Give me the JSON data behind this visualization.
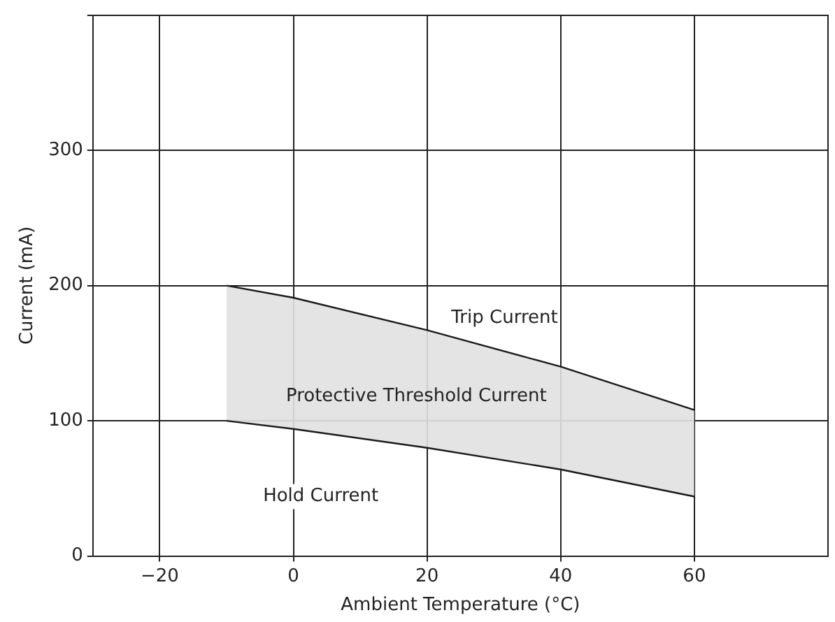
{
  "chart_data": {
    "type": "line",
    "xlabel": "Ambient Temperature (°C)",
    "ylabel": "Current (mA)",
    "x": [
      -10,
      0,
      20,
      40,
      60
    ],
    "series": [
      {
        "color": "#1a1a1a",
        "values": [
          200,
          191,
          167,
          140,
          108
        ]
      },
      {
        "color": "#1a1a1a",
        "values": [
          100,
          94,
          80,
          64,
          44
        ],
        "lower": [
          100,
          94,
          80,
          64,
          44
        ],
        "upper": [
          200,
          191,
          167,
          140,
          108
        ]
      }
    ],
    "xlim": [
      -30,
      80
    ],
    "xticks": [
      -20,
      0,
      20,
      40,
      60
    ],
    "ylim": [
      0,
      400
    ],
    "yticks": [
      0,
      100,
      200,
      300,
      {
        "value": 400,
        "label": null
      }
    ],
    "grid": true,
    "legend": false,
    "marker": "none",
    "line_style": "solid",
    "annotations": [
      "Trip Current",
      "Protective Threshold Current",
      "Hold Current"
    ]
  }
}
